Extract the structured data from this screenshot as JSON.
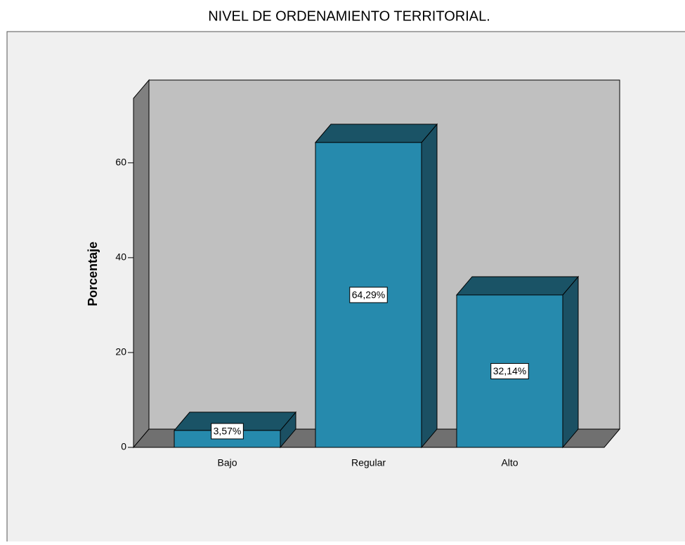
{
  "chart_data": {
    "type": "bar3d",
    "title": "NIVEL DE ORDENAMIENTO TERRITORIAL.",
    "y_label": "Porcentaje",
    "categories": [
      "Bajo",
      "Regular",
      "Alto"
    ],
    "values": [
      3.57,
      64.29,
      32.14
    ],
    "value_labels": [
      "3,57%",
      "64,29%",
      "32,14%"
    ],
    "color": "#268aad",
    "ylim": [
      0,
      73.6
    ],
    "yticks": [
      0,
      20,
      40,
      60
    ]
  }
}
